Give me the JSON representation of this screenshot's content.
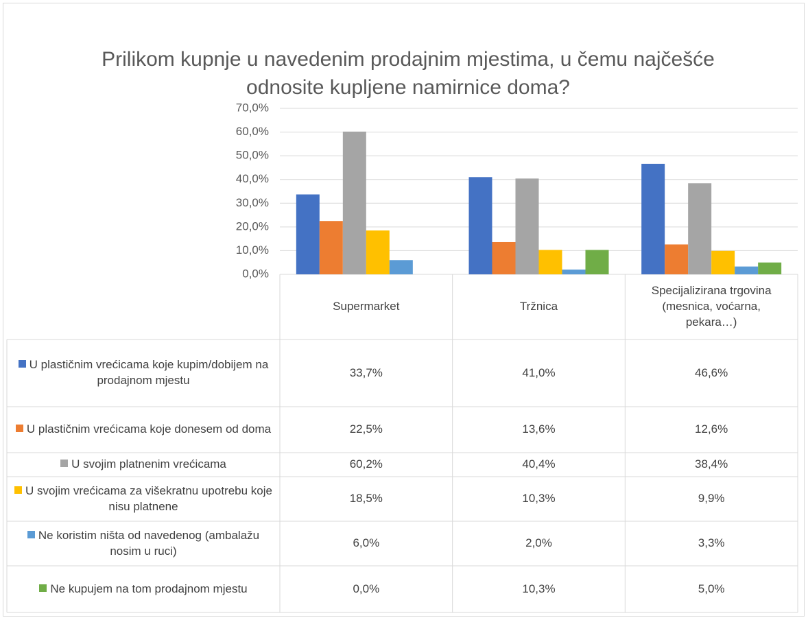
{
  "chart_data": {
    "type": "bar",
    "title": "Prilikom kupnje u navedenim prodajnim mjestima, u čemu najčešće odnosite kupljene namirnice doma?",
    "categories": [
      "Supermarket",
      "Tržnica",
      "Specijalizirana trgovina (mesnica, voćarna, pekara…)"
    ],
    "series": [
      {
        "name": "U plastičnim vrećicama koje kupim/dobijem na prodajnom mjestu",
        "color": "#4472c4",
        "values": [
          33.7,
          41.0,
          46.6
        ],
        "value_labels": [
          "33,7%",
          "41,0%",
          "46,6%"
        ]
      },
      {
        "name": "U plastičnim vrećicama koje donesem od doma",
        "color": "#ed7d31",
        "values": [
          22.5,
          13.6,
          12.6
        ],
        "value_labels": [
          "22,5%",
          "13,6%",
          "12,6%"
        ]
      },
      {
        "name": "U svojim platnenim vrećicama",
        "color": "#a5a5a5",
        "values": [
          60.2,
          40.4,
          38.4
        ],
        "value_labels": [
          "60,2%",
          "40,4%",
          "38,4%"
        ]
      },
      {
        "name": "U svojim vrećicama za višekratnu upotrebu koje nisu platnene",
        "color": "#ffc000",
        "values": [
          18.5,
          10.3,
          9.9
        ],
        "value_labels": [
          "18,5%",
          "10,3%",
          "9,9%"
        ]
      },
      {
        "name": "Ne koristim ništa od navedenog (ambalažu nosim u ruci)",
        "color": "#5b9bd5",
        "values": [
          6.0,
          2.0,
          3.3
        ],
        "value_labels": [
          "6,0%",
          "2,0%",
          "3,3%"
        ]
      },
      {
        "name": "Ne kupujem na tom prodajnom mjestu",
        "color": "#70ad47",
        "values": [
          0.0,
          10.3,
          5.0
        ],
        "value_labels": [
          "0,0%",
          "10,3%",
          "5,0%"
        ]
      }
    ],
    "ylim": [
      0,
      70
    ],
    "yticks": [
      {
        "value": 0,
        "label": "0,0%"
      },
      {
        "value": 10,
        "label": "10,0%"
      },
      {
        "value": 20,
        "label": "20,0%"
      },
      {
        "value": 30,
        "label": "30,0%"
      },
      {
        "value": 40,
        "label": "40,0%"
      },
      {
        "value": 50,
        "label": "50,0%"
      },
      {
        "value": 60,
        "label": "60,0%"
      },
      {
        "value": 70,
        "label": "70,0%"
      }
    ],
    "grid": true
  }
}
